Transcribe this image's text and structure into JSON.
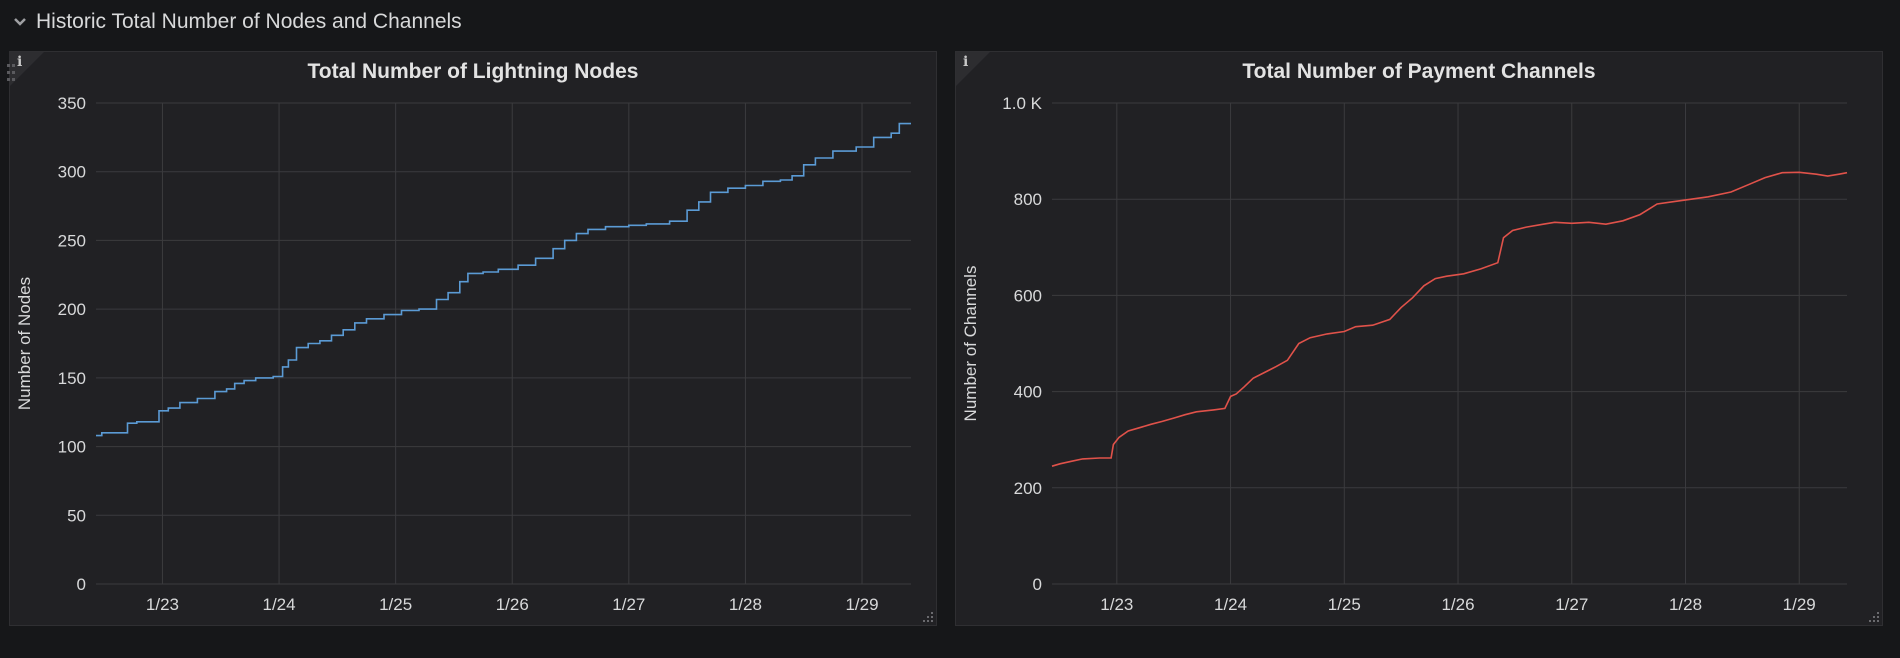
{
  "row": {
    "title": "Historic Total Number of Nodes and Channels",
    "collapse_icon": "chevron-down-icon"
  },
  "panels": [
    {
      "title": "Total Number of Lightning Nodes",
      "info_label": "i",
      "color": "#5b9bd5"
    },
    {
      "title": "Total Number of Payment Channels",
      "info_label": "i",
      "color": "#e0524a"
    }
  ],
  "chart_data": [
    {
      "type": "line",
      "title": "Total Number of Lightning Nodes",
      "xlabel": "",
      "ylabel": "Number of Nodes",
      "x_ticks": [
        "1/23",
        "1/24",
        "1/25",
        "1/26",
        "1/27",
        "1/28",
        "1/29"
      ],
      "x_tick_values": [
        1,
        2,
        3,
        4,
        5,
        6,
        7
      ],
      "xlim": [
        0.43,
        7.42
      ],
      "ylim": [
        0,
        350
      ],
      "y_ticks": [
        0,
        50,
        100,
        150,
        200,
        250,
        300,
        350
      ],
      "y_tick_labels": [
        "0",
        "50",
        "100",
        "150",
        "200",
        "250",
        "300",
        "350"
      ],
      "grid": true,
      "step": true,
      "series": [
        {
          "color": "#5b9bd5",
          "points": [
            [
              0.43,
              108
            ],
            [
              0.48,
              110
            ],
            [
              0.64,
              110
            ],
            [
              0.7,
              117
            ],
            [
              0.78,
              118
            ],
            [
              0.95,
              118
            ],
            [
              0.97,
              126
            ],
            [
              1.05,
              128
            ],
            [
              1.15,
              132
            ],
            [
              1.3,
              135
            ],
            [
              1.45,
              140
            ],
            [
              1.55,
              142
            ],
            [
              1.62,
              146
            ],
            [
              1.7,
              148
            ],
            [
              1.8,
              150
            ],
            [
              1.95,
              151
            ],
            [
              2.0,
              151
            ],
            [
              2.03,
              158
            ],
            [
              2.08,
              163
            ],
            [
              2.15,
              172
            ],
            [
              2.25,
              175
            ],
            [
              2.35,
              177
            ],
            [
              2.45,
              181
            ],
            [
              2.55,
              185
            ],
            [
              2.65,
              190
            ],
            [
              2.75,
              193
            ],
            [
              2.9,
              196
            ],
            [
              3.05,
              199
            ],
            [
              3.2,
              200
            ],
            [
              3.35,
              207
            ],
            [
              3.45,
              212
            ],
            [
              3.55,
              220
            ],
            [
              3.62,
              226
            ],
            [
              3.75,
              227
            ],
            [
              3.88,
              229
            ],
            [
              4.05,
              232
            ],
            [
              4.2,
              237
            ],
            [
              4.35,
              244
            ],
            [
              4.45,
              250
            ],
            [
              4.55,
              255
            ],
            [
              4.65,
              258
            ],
            [
              4.8,
              260
            ],
            [
              5.0,
              261
            ],
            [
              5.15,
              262
            ],
            [
              5.35,
              264
            ],
            [
              5.5,
              272
            ],
            [
              5.6,
              278
            ],
            [
              5.7,
              285
            ],
            [
              5.85,
              288
            ],
            [
              6.0,
              290
            ],
            [
              6.15,
              293
            ],
            [
              6.3,
              294
            ],
            [
              6.4,
              297
            ],
            [
              6.5,
              305
            ],
            [
              6.6,
              310
            ],
            [
              6.75,
              315
            ],
            [
              6.95,
              318
            ],
            [
              7.1,
              325
            ],
            [
              7.25,
              328
            ],
            [
              7.32,
              335
            ],
            [
              7.42,
              335
            ]
          ]
        }
      ]
    },
    {
      "type": "line",
      "title": "Total Number of Payment Channels",
      "xlabel": "",
      "ylabel": "Number of Channels",
      "x_ticks": [
        "1/23",
        "1/24",
        "1/25",
        "1/26",
        "1/27",
        "1/28",
        "1/29"
      ],
      "x_tick_values": [
        1,
        2,
        3,
        4,
        5,
        6,
        7
      ],
      "xlim": [
        0.43,
        7.42
      ],
      "ylim": [
        0,
        1000
      ],
      "y_ticks": [
        0,
        200,
        400,
        600,
        800,
        1000
      ],
      "y_tick_labels": [
        "0",
        "200",
        "400",
        "600",
        "800",
        "1.0 K"
      ],
      "grid": true,
      "step": false,
      "series": [
        {
          "color": "#e0524a",
          "points": [
            [
              0.43,
              245
            ],
            [
              0.5,
              250
            ],
            [
              0.6,
              255
            ],
            [
              0.7,
              260
            ],
            [
              0.85,
              262
            ],
            [
              0.95,
              262
            ],
            [
              0.97,
              290
            ],
            [
              1.02,
              305
            ],
            [
              1.1,
              318
            ],
            [
              1.2,
              325
            ],
            [
              1.3,
              332
            ],
            [
              1.4,
              338
            ],
            [
              1.5,
              345
            ],
            [
              1.6,
              352
            ],
            [
              1.7,
              358
            ],
            [
              1.85,
              362
            ],
            [
              1.95,
              365
            ],
            [
              2.0,
              390
            ],
            [
              2.05,
              395
            ],
            [
              2.12,
              410
            ],
            [
              2.2,
              428
            ],
            [
              2.3,
              440
            ],
            [
              2.4,
              452
            ],
            [
              2.5,
              465
            ],
            [
              2.6,
              500
            ],
            [
              2.7,
              512
            ],
            [
              2.85,
              520
            ],
            [
              3.0,
              525
            ],
            [
              3.1,
              535
            ],
            [
              3.25,
              538
            ],
            [
              3.4,
              550
            ],
            [
              3.5,
              575
            ],
            [
              3.6,
              595
            ],
            [
              3.7,
              620
            ],
            [
              3.8,
              635
            ],
            [
              3.9,
              640
            ],
            [
              4.05,
              645
            ],
            [
              4.2,
              655
            ],
            [
              4.35,
              668
            ],
            [
              4.4,
              720
            ],
            [
              4.48,
              735
            ],
            [
              4.6,
              742
            ],
            [
              4.75,
              748
            ],
            [
              4.85,
              752
            ],
            [
              5.0,
              750
            ],
            [
              5.15,
              752
            ],
            [
              5.3,
              748
            ],
            [
              5.45,
              755
            ],
            [
              5.6,
              768
            ],
            [
              5.75,
              790
            ],
            [
              5.9,
              795
            ],
            [
              6.05,
              800
            ],
            [
              6.2,
              805
            ],
            [
              6.4,
              815
            ],
            [
              6.55,
              830
            ],
            [
              6.7,
              845
            ],
            [
              6.85,
              855
            ],
            [
              7.0,
              856
            ],
            [
              7.15,
              852
            ],
            [
              7.25,
              848
            ],
            [
              7.35,
              852
            ],
            [
              7.42,
              855
            ]
          ]
        }
      ]
    }
  ]
}
